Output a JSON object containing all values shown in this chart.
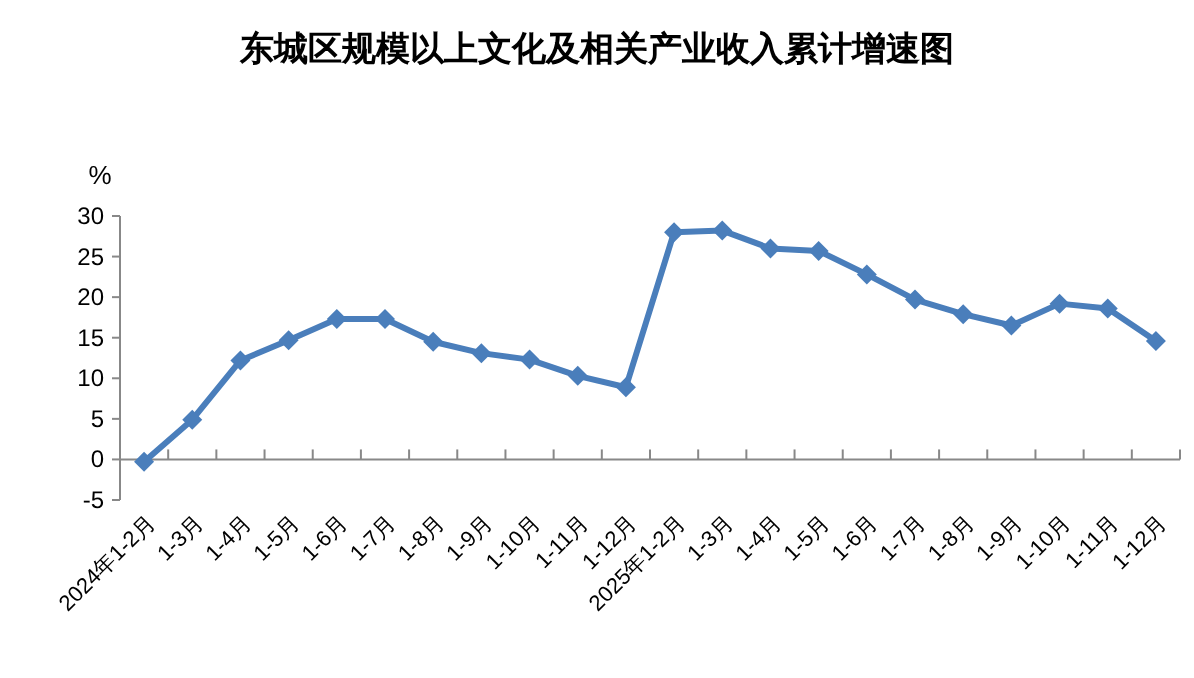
{
  "chart_data": {
    "type": "line",
    "title": "东城区规模以上文化及相关产业收入累计增速图",
    "ylabel": "%",
    "categories": [
      "2024年1-2月",
      "1-3月",
      "1-4月",
      "1-5月",
      "1-6月",
      "1-7月",
      "1-8月",
      "1-9月",
      "1-10月",
      "1-11月",
      "1-12月",
      "2025年1-2月",
      "1-3月",
      "1-4月",
      "1-5月",
      "1-6月",
      "1-7月",
      "1-8月",
      "1-9月",
      "1-10月",
      "1-11月",
      "1-12月"
    ],
    "series": [
      {
        "color": "#4a7ebb",
        "values": [
          -0.3,
          4.9,
          12.2,
          14.7,
          17.3,
          17.3,
          14.5,
          13.1,
          12.3,
          10.3,
          8.9,
          28.0,
          28.2,
          26.0,
          25.7,
          22.8,
          19.7,
          17.9,
          16.5,
          19.2,
          18.6,
          14.6
        ]
      }
    ],
    "ylim": [
      -5,
      30
    ],
    "yticks": [
      -5,
      0,
      5,
      10,
      15,
      20,
      25,
      30
    ],
    "grid": false,
    "marker": "diamond",
    "line_style": "solid"
  }
}
